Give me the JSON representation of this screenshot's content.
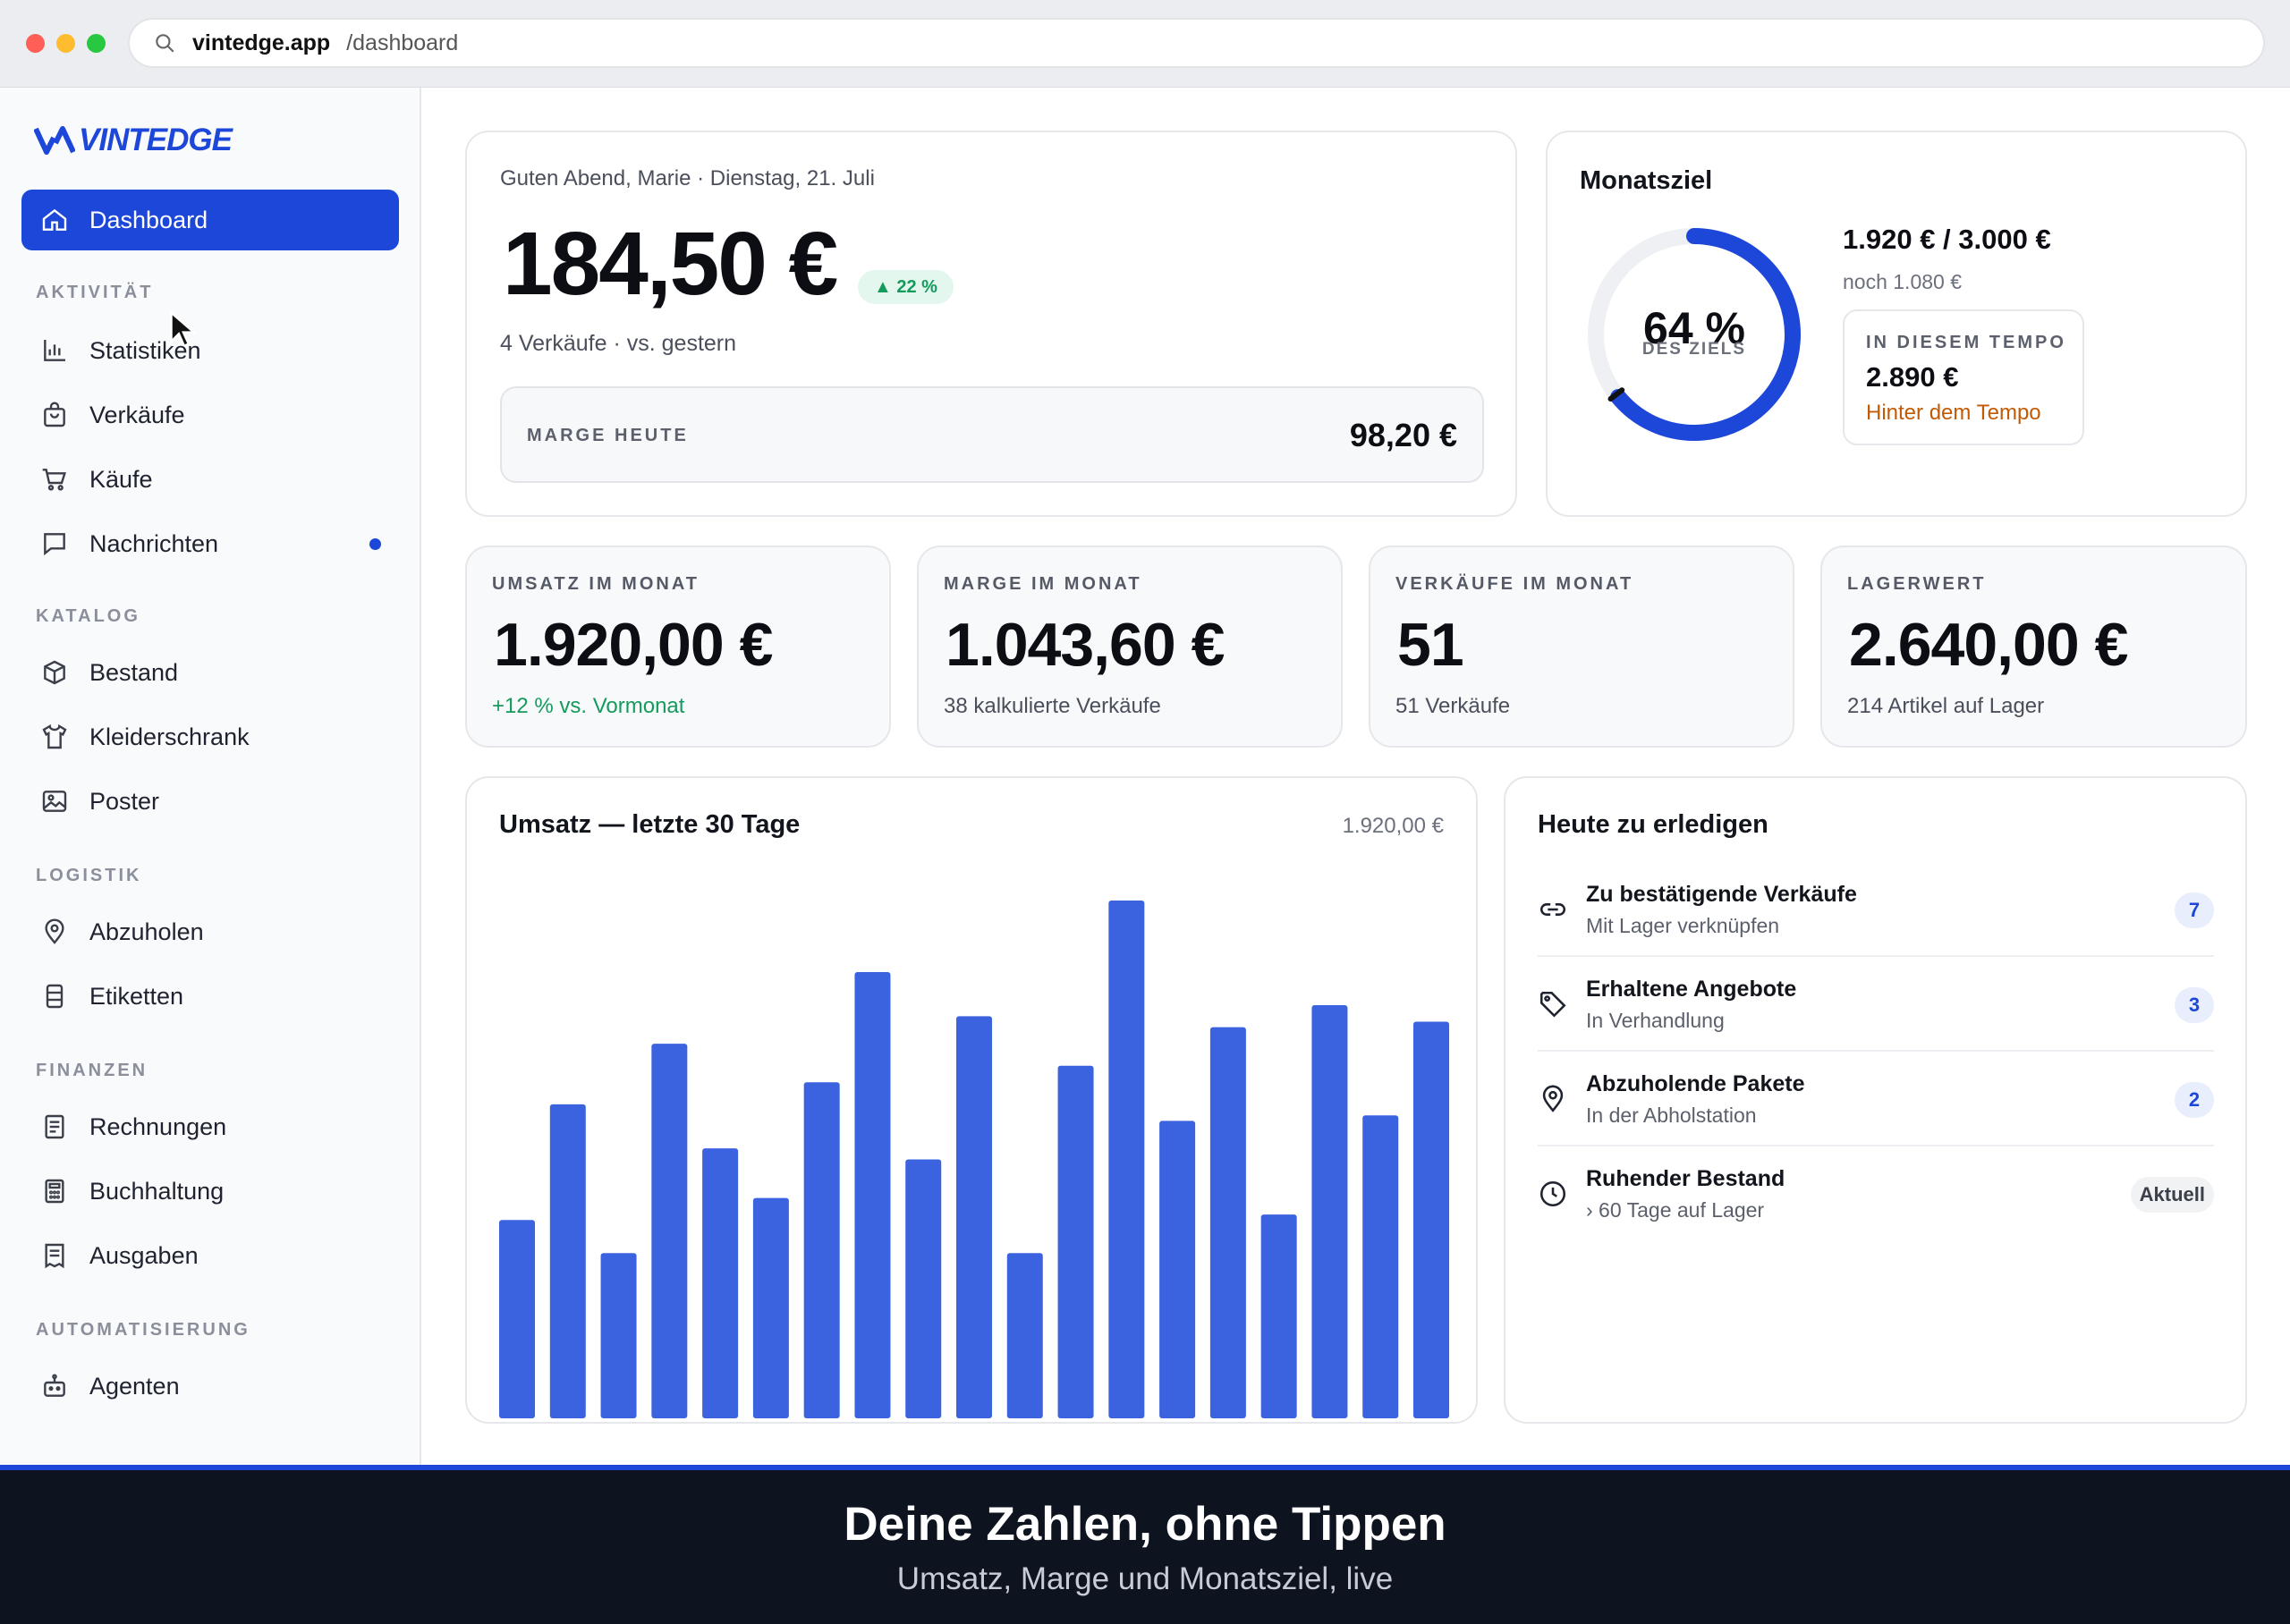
{
  "browser": {
    "host": "vintedge.app",
    "path": "/dashboard"
  },
  "brand": {
    "name": "VINTEDGE",
    "accent": "#1d47d8"
  },
  "sidebar": {
    "active": {
      "label": "Dashboard",
      "icon": "home-icon"
    },
    "sections": [
      {
        "title": "AKTIVITÄT",
        "items": [
          {
            "label": "Statistiken",
            "icon": "bar-chart-icon"
          },
          {
            "label": "Verkäufe",
            "icon": "bag-icon"
          },
          {
            "label": "Käufe",
            "icon": "cart-icon"
          },
          {
            "label": "Nachrichten",
            "icon": "message-icon",
            "unread": true
          }
        ]
      },
      {
        "title": "KATALOG",
        "items": [
          {
            "label": "Bestand",
            "icon": "box-icon"
          },
          {
            "label": "Kleiderschrank",
            "icon": "shirt-icon"
          },
          {
            "label": "Poster",
            "icon": "image-icon"
          }
        ]
      },
      {
        "title": "LOGISTIK",
        "items": [
          {
            "label": "Abzuholen",
            "icon": "pin-icon"
          },
          {
            "label": "Etiketten",
            "icon": "printer-icon"
          }
        ]
      },
      {
        "title": "FINANZEN",
        "items": [
          {
            "label": "Rechnungen",
            "icon": "invoice-icon"
          },
          {
            "label": "Buchhaltung",
            "icon": "calculator-icon"
          },
          {
            "label": "Ausgaben",
            "icon": "receipt-icon"
          }
        ]
      },
      {
        "title": "AUTOMATISIERUNG",
        "items": [
          {
            "label": "Agenten",
            "icon": "robot-icon"
          }
        ]
      }
    ]
  },
  "today": {
    "greeting": "Guten Abend, Marie · Dienstag, 21. Juli",
    "amount": "184,50 €",
    "change": "▲ 22 %",
    "subline": "4 Verkäufe · vs. gestern",
    "margin_label": "MARGE HEUTE",
    "margin_value": "98,20 €"
  },
  "goal": {
    "title": "Monatsziel",
    "percent": 64,
    "percent_label": "64 %",
    "percent_caption": "DES ZIELS",
    "progress": "1.920 € / 3.000 €",
    "remaining": "noch 1.080 €",
    "pace_label": "IN DIESEM TEMPO",
    "pace_value": "2.890 €",
    "pace_status": "Hinter dem Tempo",
    "ring_color": "#1d47d8",
    "warn_color": "#c25a06"
  },
  "kpis": [
    {
      "label": "UMSATZ IM MONAT",
      "value": "1.920,00 €",
      "sub": "+12 % vs. Vormonat",
      "positive": true
    },
    {
      "label": "MARGE IM MONAT",
      "value": "1.043,60 €",
      "sub": "38 kalkulierte Verkäufe",
      "positive": false
    },
    {
      "label": "VERKÄUFE IM MONAT",
      "value": "51",
      "sub": "51 Verkäufe",
      "positive": false
    },
    {
      "label": "LAGERWERT",
      "value": "2.640,00 €",
      "sub": "214 Artikel auf Lager",
      "positive": false
    }
  ],
  "revenue": {
    "title": "Umsatz — letzte 30 Tage",
    "total": "1.920,00 €"
  },
  "chart_data": {
    "type": "bar",
    "title": "Umsatz — letzte 30 Tage",
    "xlabel": "",
    "ylabel": "",
    "values": [
      36,
      57,
      30,
      68,
      49,
      40,
      61,
      81,
      47,
      73,
      30,
      64,
      94,
      54,
      71,
      37,
      75,
      55,
      72
    ],
    "ylim": [
      0,
      100
    ],
    "bar_color": "#3b63e0",
    "grid": false
  },
  "todos": {
    "title": "Heute zu erledigen",
    "items": [
      {
        "title": "Zu bestätigende Verkäufe",
        "sub": "Mit Lager verknüpfen",
        "count": "7",
        "icon": "link-icon"
      },
      {
        "title": "Erhaltene Angebote",
        "sub": "In Verhandlung",
        "count": "3",
        "icon": "tag-icon"
      },
      {
        "title": "Abzuholende Pakete",
        "sub": "In der Abholstation",
        "count": "2",
        "icon": "pin-icon"
      },
      {
        "title": "Ruhender Bestand",
        "sub": "› 60 Tage auf Lager",
        "count": "Aktuell",
        "icon": "clock-icon"
      }
    ]
  },
  "banner": {
    "headline": "Deine Zahlen, ohne Tippen",
    "subline": "Umsatz, Marge und Monatsziel, live"
  }
}
